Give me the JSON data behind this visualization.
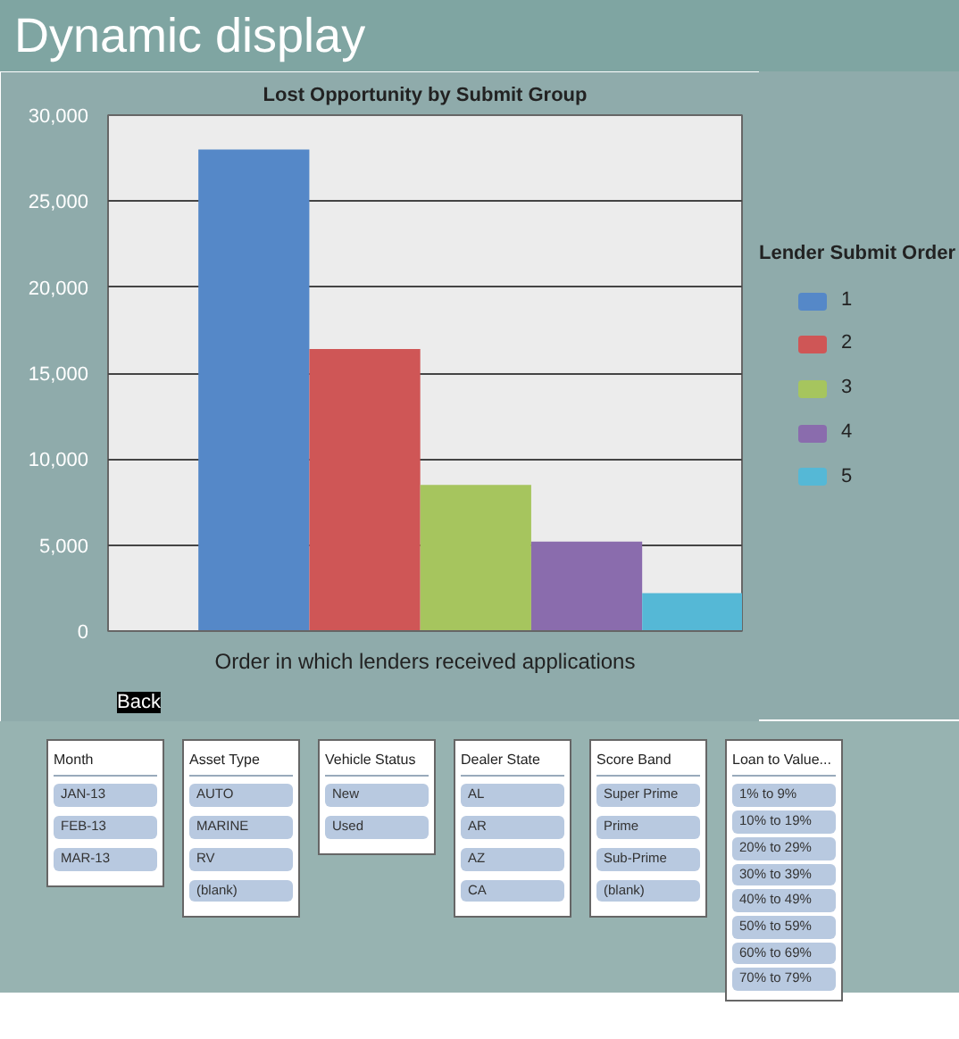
{
  "chart_data": {
    "type": "bar",
    "title": "Dynamic display",
    "subtitle": "Lost Opportunity by Submit Group",
    "xlabel": "Order in which lenders received applications",
    "legend_title": "Lender Submit Order",
    "legend": "right",
    "categories": [
      null
    ],
    "series": [
      {
        "name": "1",
        "color": "#5588c8",
        "values": [
          28000
        ]
      },
      {
        "name": "2",
        "color": "#cf5656",
        "values": [
          16400
        ]
      },
      {
        "name": "3",
        "color": "#a6c55e",
        "values": [
          8500
        ]
      },
      {
        "name": "4",
        "color": "#8a6cad",
        "values": [
          5200
        ]
      },
      {
        "name": "5",
        "color": "#55b8d6",
        "values": [
          2200
        ]
      }
    ],
    "ylim": [
      0,
      30000
    ],
    "yticks": [
      {
        "value": 0,
        "label": "0"
      },
      {
        "value": 5000,
        "label": "5,000"
      },
      {
        "value": 10000,
        "label": "10,000"
      },
      {
        "value": 15000,
        "label": "15,000"
      },
      {
        "value": 20000,
        "label": "20,000"
      },
      {
        "value": 25000,
        "label": "25,000"
      },
      {
        "value": 30000,
        "label": "30,000"
      }
    ],
    "grid": "y",
    "annotations": [
      "Back",
      "Month",
      "JAN-13",
      "FEB-13",
      "MAR-13",
      "Asset Type",
      "AUTO",
      "MARINE",
      "RV",
      "(blank)",
      "Vehicle Status",
      "New",
      "Used",
      "Dealer State",
      "AL",
      "AR",
      "AZ",
      "CA",
      "Score Band",
      "Super Prime",
      "Prime",
      "Sub-Prime",
      "(blank)",
      "Loan to Value...",
      "1% to 9%",
      "10% to 19%",
      "20% to 29%",
      "30% to 39%",
      "40% to 49%",
      "50% to 59%",
      "60% to 69%",
      "70% to 79%"
    ]
  }
}
